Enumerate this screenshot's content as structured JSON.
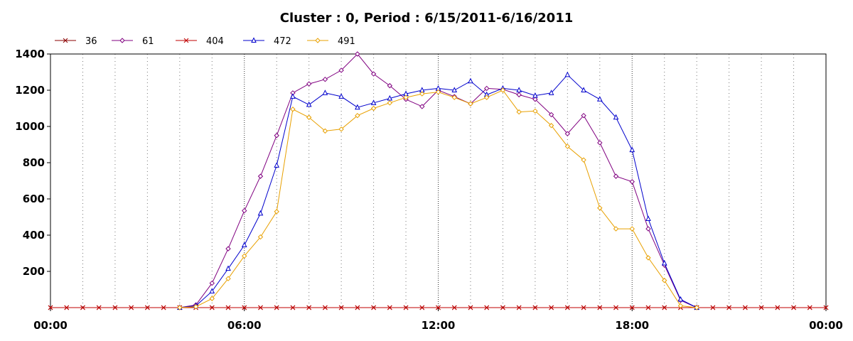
{
  "chart_data": {
    "type": "line",
    "title": "Cluster : 0, Period : 6/15/2011-6/16/2011",
    "xlabel": "",
    "ylabel": "",
    "x_ticks": [
      "00:00",
      "06:00",
      "12:00",
      "18:00",
      "00:00"
    ],
    "y_ticks": [
      200,
      400,
      600,
      800,
      1000,
      1200,
      1400
    ],
    "xlim_hours": [
      0,
      24
    ],
    "ylim": [
      0,
      1400
    ],
    "grid": "vertical dotted",
    "legend": "top-left",
    "series": [
      {
        "name": "36",
        "color": "#8b0000",
        "marker": "x",
        "points": [
          [
            0,
            0
          ],
          [
            0.5,
            0
          ],
          [
            1,
            0
          ],
          [
            1.5,
            0
          ],
          [
            2,
            0
          ],
          [
            2.5,
            0
          ],
          [
            3,
            0
          ],
          [
            3.5,
            0
          ],
          [
            4,
            0
          ],
          [
            4.5,
            0
          ],
          [
            5,
            0
          ],
          [
            5.5,
            0
          ],
          [
            6,
            0
          ],
          [
            6.5,
            0
          ],
          [
            7,
            0
          ],
          [
            7.5,
            0
          ],
          [
            8,
            0
          ],
          [
            8.5,
            0
          ],
          [
            9,
            0
          ],
          [
            9.5,
            0
          ],
          [
            10,
            0
          ],
          [
            10.5,
            0
          ],
          [
            11,
            0
          ],
          [
            11.5,
            0
          ],
          [
            12,
            0
          ],
          [
            12.5,
            0
          ],
          [
            13,
            0
          ],
          [
            13.5,
            0
          ],
          [
            14,
            0
          ],
          [
            14.5,
            0
          ],
          [
            15,
            0
          ],
          [
            15.5,
            0
          ],
          [
            16,
            0
          ],
          [
            16.5,
            0
          ],
          [
            17,
            0
          ],
          [
            17.5,
            0
          ],
          [
            18,
            0
          ],
          [
            18.5,
            0
          ],
          [
            19,
            0
          ],
          [
            19.5,
            0
          ],
          [
            20,
            0
          ],
          [
            20.5,
            0
          ],
          [
            21,
            0
          ],
          [
            21.5,
            0
          ],
          [
            22,
            0
          ],
          [
            22.5,
            0
          ],
          [
            23,
            0
          ],
          [
            23.5,
            0
          ],
          [
            24,
            0
          ]
        ]
      },
      {
        "name": "61",
        "color": "#800080",
        "marker": "diamond",
        "points": [
          [
            4,
            0
          ],
          [
            4.5,
            15
          ],
          [
            5,
            135
          ],
          [
            5.5,
            325
          ],
          [
            6,
            535
          ],
          [
            6.5,
            725
          ],
          [
            7,
            950
          ],
          [
            7.5,
            1185
          ],
          [
            8,
            1235
          ],
          [
            8.5,
            1260
          ],
          [
            9,
            1310
          ],
          [
            9.5,
            1400
          ],
          [
            10,
            1290
          ],
          [
            10.5,
            1225
          ],
          [
            11,
            1150
          ],
          [
            11.5,
            1110
          ],
          [
            12,
            1200
          ],
          [
            12.5,
            1165
          ],
          [
            13,
            1125
          ],
          [
            13.5,
            1210
          ],
          [
            14,
            1205
          ],
          [
            14.5,
            1175
          ],
          [
            15,
            1150
          ],
          [
            15.5,
            1065
          ],
          [
            16,
            960
          ],
          [
            16.5,
            1060
          ],
          [
            17,
            910
          ],
          [
            17.5,
            725
          ],
          [
            18,
            695
          ],
          [
            18.5,
            435
          ],
          [
            19,
            235
          ],
          [
            19.5,
            40
          ],
          [
            20,
            0
          ]
        ]
      },
      {
        "name": "404",
        "color": "#c00000",
        "marker": "x",
        "points": [
          [
            0,
            0
          ],
          [
            0.5,
            0
          ],
          [
            1,
            0
          ],
          [
            1.5,
            0
          ],
          [
            2,
            0
          ],
          [
            2.5,
            0
          ],
          [
            3,
            0
          ],
          [
            3.5,
            0
          ],
          [
            4,
            0
          ],
          [
            4.5,
            0
          ],
          [
            5,
            0
          ],
          [
            5.5,
            0
          ],
          [
            6,
            0
          ],
          [
            6.5,
            0
          ],
          [
            7,
            0
          ],
          [
            7.5,
            0
          ],
          [
            8,
            0
          ],
          [
            8.5,
            0
          ],
          [
            9,
            0
          ],
          [
            9.5,
            0
          ],
          [
            10,
            0
          ],
          [
            10.5,
            0
          ],
          [
            11,
            0
          ],
          [
            11.5,
            0
          ],
          [
            12,
            0
          ],
          [
            12.5,
            0
          ],
          [
            13,
            0
          ],
          [
            13.5,
            0
          ],
          [
            14,
            0
          ],
          [
            14.5,
            0
          ],
          [
            15,
            0
          ],
          [
            15.5,
            0
          ],
          [
            16,
            0
          ],
          [
            16.5,
            0
          ],
          [
            17,
            0
          ],
          [
            17.5,
            0
          ],
          [
            18,
            0
          ],
          [
            18.5,
            0
          ],
          [
            19,
            0
          ],
          [
            19.5,
            0
          ],
          [
            20,
            0
          ],
          [
            20.5,
            0
          ],
          [
            21,
            0
          ],
          [
            21.5,
            0
          ],
          [
            22,
            0
          ],
          [
            22.5,
            0
          ],
          [
            23,
            0
          ],
          [
            23.5,
            0
          ],
          [
            24,
            0
          ]
        ]
      },
      {
        "name": "472",
        "color": "#0000cc",
        "marker": "triangle",
        "points": [
          [
            4,
            0
          ],
          [
            4.5,
            10
          ],
          [
            5,
            90
          ],
          [
            5.5,
            215
          ],
          [
            6,
            345
          ],
          [
            6.5,
            520
          ],
          [
            7,
            785
          ],
          [
            7.5,
            1165
          ],
          [
            8,
            1120
          ],
          [
            8.5,
            1185
          ],
          [
            9,
            1165
          ],
          [
            9.5,
            1105
          ],
          [
            10,
            1130
          ],
          [
            10.5,
            1155
          ],
          [
            11,
            1180
          ],
          [
            11.5,
            1200
          ],
          [
            12,
            1210
          ],
          [
            12.5,
            1200
          ],
          [
            13,
            1250
          ],
          [
            13.5,
            1175
          ],
          [
            14,
            1210
          ],
          [
            14.5,
            1200
          ],
          [
            15,
            1170
          ],
          [
            15.5,
            1185
          ],
          [
            16,
            1285
          ],
          [
            16.5,
            1200
          ],
          [
            17,
            1150
          ],
          [
            17.5,
            1050
          ],
          [
            18,
            870
          ],
          [
            18.5,
            490
          ],
          [
            19,
            245
          ],
          [
            19.5,
            45
          ],
          [
            20,
            0
          ]
        ]
      },
      {
        "name": "491",
        "color": "#e8a000",
        "marker": "diamond",
        "points": [
          [
            4,
            0
          ],
          [
            4.5,
            5
          ],
          [
            5,
            50
          ],
          [
            5.5,
            160
          ],
          [
            6,
            285
          ],
          [
            6.5,
            390
          ],
          [
            7,
            530
          ],
          [
            7.5,
            1095
          ],
          [
            8,
            1050
          ],
          [
            8.5,
            975
          ],
          [
            9,
            985
          ],
          [
            9.5,
            1060
          ],
          [
            10,
            1100
          ],
          [
            10.5,
            1130
          ],
          [
            11,
            1160
          ],
          [
            11.5,
            1180
          ],
          [
            12,
            1190
          ],
          [
            12.5,
            1160
          ],
          [
            13,
            1125
          ],
          [
            13.5,
            1160
          ],
          [
            14,
            1200
          ],
          [
            14.5,
            1080
          ],
          [
            15,
            1085
          ],
          [
            15.5,
            1005
          ],
          [
            16,
            890
          ],
          [
            16.5,
            815
          ],
          [
            17,
            550
          ],
          [
            17.5,
            435
          ],
          [
            18,
            435
          ],
          [
            18.5,
            275
          ],
          [
            19,
            150
          ],
          [
            19.5,
            10
          ],
          [
            20,
            0
          ]
        ]
      }
    ]
  }
}
